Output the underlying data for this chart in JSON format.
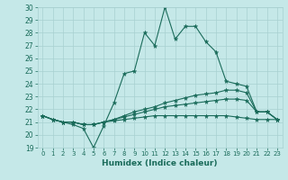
{
  "xlabel": "Humidex (Indice chaleur)",
  "bg_color": "#c5e8e8",
  "grid_color": "#a8d0d0",
  "line_color": "#1a6b5a",
  "xlim": [
    -0.5,
    23.5
  ],
  "ylim": [
    19,
    30
  ],
  "xticks": [
    0,
    1,
    2,
    3,
    4,
    5,
    6,
    7,
    8,
    9,
    10,
    11,
    12,
    13,
    14,
    15,
    16,
    17,
    18,
    19,
    20,
    21,
    22,
    23
  ],
  "yticks": [
    19,
    20,
    21,
    22,
    23,
    24,
    25,
    26,
    27,
    28,
    29,
    30
  ],
  "series": [
    [
      21.5,
      21.2,
      21.0,
      20.8,
      20.5,
      19.0,
      20.7,
      22.5,
      24.8,
      25.0,
      28.0,
      27.0,
      30.0,
      27.5,
      28.5,
      28.5,
      27.3,
      26.5,
      24.2,
      24.0,
      23.8,
      21.8,
      21.8,
      21.2
    ],
    [
      21.5,
      21.2,
      21.0,
      21.0,
      20.8,
      20.8,
      21.0,
      21.2,
      21.5,
      21.8,
      22.0,
      22.2,
      22.5,
      22.7,
      22.9,
      23.1,
      23.2,
      23.3,
      23.5,
      23.5,
      23.3,
      21.8,
      21.8,
      21.2
    ],
    [
      21.5,
      21.2,
      21.0,
      21.0,
      20.8,
      20.8,
      21.0,
      21.2,
      21.4,
      21.6,
      21.8,
      22.0,
      22.2,
      22.3,
      22.4,
      22.5,
      22.6,
      22.7,
      22.8,
      22.8,
      22.7,
      21.8,
      21.8,
      21.2
    ],
    [
      21.5,
      21.2,
      21.0,
      21.0,
      20.8,
      20.8,
      21.0,
      21.1,
      21.2,
      21.3,
      21.4,
      21.5,
      21.5,
      21.5,
      21.5,
      21.5,
      21.5,
      21.5,
      21.5,
      21.4,
      21.3,
      21.2,
      21.2,
      21.2
    ]
  ]
}
